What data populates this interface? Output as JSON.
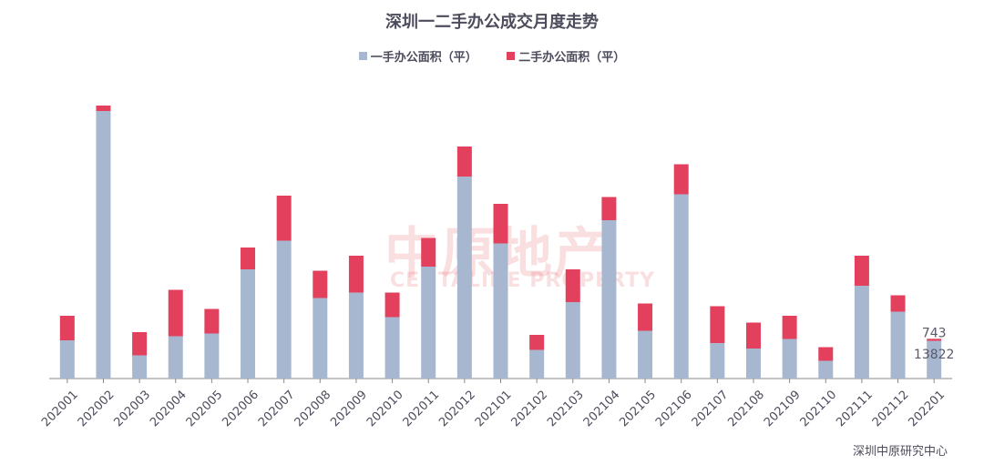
{
  "colors": {
    "series1": "#a8b7d0",
    "series2": "#e2405c",
    "axis": "#8a8a8a"
  },
  "source_note": "深圳中原研究中心",
  "watermark": {
    "main": "中原地产",
    "sub": "CENTALINE PROPERTY"
  },
  "chart_data": {
    "type": "bar",
    "stacked": true,
    "title": "深圳一二手办公成交月度走势",
    "legend_position": "top-center",
    "grid": false,
    "ylim": [
      0,
      100000
    ],
    "categories": [
      "202001",
      "202002",
      "202003",
      "202004",
      "202005",
      "202006",
      "202007",
      "202008",
      "202009",
      "202010",
      "202011",
      "202012",
      "202101",
      "202102",
      "202103",
      "202104",
      "202105",
      "202106",
      "202107",
      "202108",
      "202109",
      "202110",
      "202111",
      "202112",
      "202201"
    ],
    "series": [
      {
        "name": "一手办公面积（平）",
        "values": [
          14000,
          98000,
          8500,
          15500,
          16500,
          40000,
          50500,
          29500,
          31500,
          22500,
          41000,
          74000,
          49500,
          10500,
          28000,
          58000,
          17500,
          67500,
          13000,
          11000,
          14500,
          6500,
          34000,
          24500,
          13822
        ]
      },
      {
        "name": "二手办公面积（平）",
        "values": [
          9000,
          2000,
          8500,
          17000,
          9000,
          8000,
          16500,
          10000,
          13500,
          9000,
          10500,
          11000,
          14500,
          5500,
          12000,
          8500,
          10000,
          11000,
          13500,
          9500,
          8500,
          5000,
          11000,
          6000,
          743
        ]
      }
    ],
    "data_labels": [
      {
        "category": "202201",
        "series": "二手办公面积（平）",
        "text": "743"
      },
      {
        "category": "202201",
        "series": "一手办公面积（平）",
        "text": "13822"
      }
    ]
  }
}
